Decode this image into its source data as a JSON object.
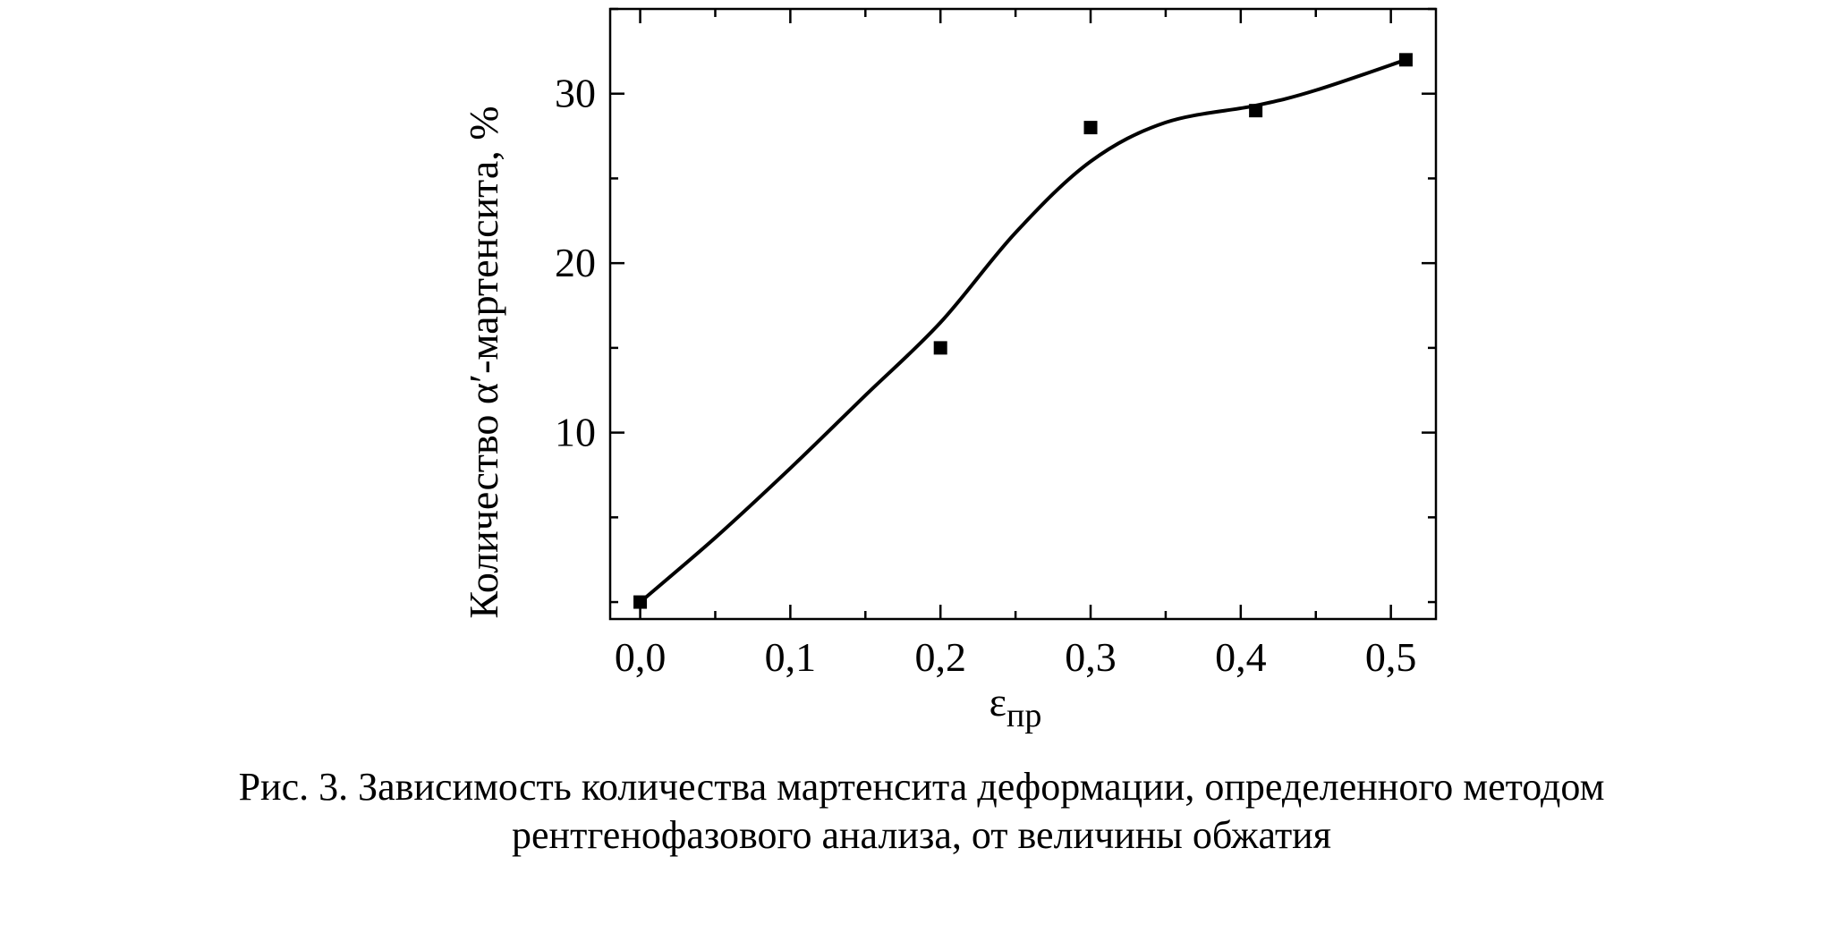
{
  "chart_data": {
    "type": "scatter",
    "x": [
      0.0,
      0.2,
      0.3,
      0.41,
      0.51
    ],
    "y": [
      0.0,
      15,
      28,
      29,
      32
    ],
    "fit_curve": {
      "x": [
        0.0,
        0.05,
        0.1,
        0.15,
        0.2,
        0.25,
        0.3,
        0.35,
        0.41,
        0.45,
        0.51
      ],
      "y": [
        0.0,
        3.8,
        7.9,
        12.2,
        16.5,
        21.8,
        26.0,
        28.3,
        29.3,
        30.2,
        32.0
      ]
    },
    "xlabel": "ε",
    "xlabel_sub": "пр",
    "ylabel": "Количество α′-мартенсита, %",
    "x_ticks": [
      {
        "v": 0.0,
        "label": "0,0"
      },
      {
        "v": 0.1,
        "label": "0,1"
      },
      {
        "v": 0.2,
        "label": "0,2"
      },
      {
        "v": 0.3,
        "label": "0,3"
      },
      {
        "v": 0.4,
        "label": "0,4"
      },
      {
        "v": 0.5,
        "label": "0,5"
      }
    ],
    "y_ticks": [
      {
        "v": 10,
        "label": "10"
      },
      {
        "v": 20,
        "label": "20"
      },
      {
        "v": 30,
        "label": "30"
      }
    ],
    "xlim": [
      -0.02,
      0.53
    ],
    "ylim": [
      -1,
      35
    ],
    "grid": false,
    "marker": "square",
    "color": "#000000"
  },
  "caption": {
    "line1": "Рис. 3. Зависимость количества мартенсита деформации, определенного методом",
    "line2": "рентгенофазового анализа, от величины обжатия"
  }
}
